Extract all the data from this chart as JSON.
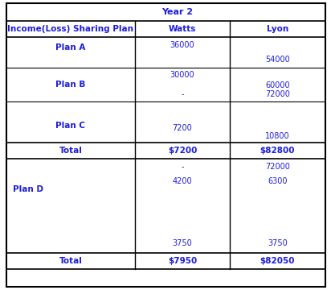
{
  "title": "Year 2",
  "col_headers": [
    "Income(Loss) Sharing Plan",
    "Watts",
    "Lyon"
  ],
  "text_color": "#1c1cdb",
  "background": "#ffffff",
  "title_fontsize": 8,
  "header_fontsize": 7.5,
  "body_fontsize": 7,
  "total_row1": {
    "label": "Total",
    "watts": "$7200",
    "lyon": "$82800"
  },
  "total_row2": {
    "label": "Total",
    "watts": "$7950",
    "lyon": "$82050"
  },
  "plan_d_label": "Plan D"
}
